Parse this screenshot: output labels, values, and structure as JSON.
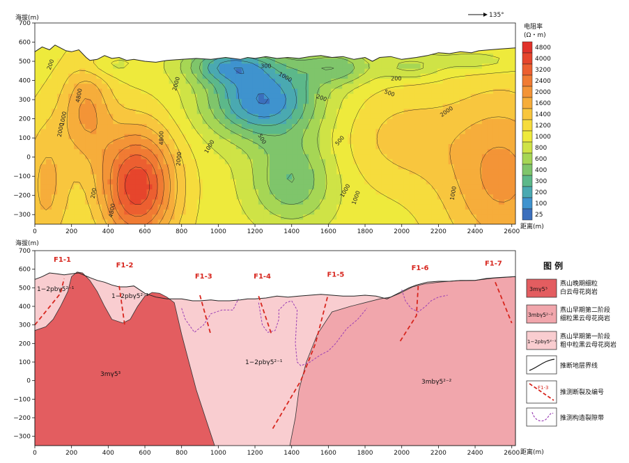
{
  "chart_data": [
    {
      "type": "heatmap",
      "title": "",
      "ylabel": "海拔(m)",
      "xlabel": "距离(m)",
      "direction_label": "135°",
      "xlim": [
        0,
        2620
      ],
      "ylim": [
        -350,
        700
      ],
      "x_ticks": [
        "0",
        "200",
        "400",
        "600",
        "800",
        "1000",
        "1200",
        "1400",
        "1600",
        "1800",
        "2000",
        "2200",
        "2400",
        "2600"
      ],
      "y_ticks": [
        "700",
        "600",
        "500",
        "400",
        "300",
        "200",
        "100",
        "0",
        "−100",
        "−200",
        "−300"
      ],
      "colorbar": {
        "title": "电阻率",
        "unit": "(Ω・m)",
        "levels": [
          "4800",
          "4000",
          "3200",
          "2400",
          "2000",
          "1600",
          "1400",
          "1200",
          "1000",
          "800",
          "600",
          "400",
          "300",
          "200",
          "100",
          "25"
        ],
        "colors": [
          "#e1322a",
          "#e6452c",
          "#ec5f30",
          "#f07b33",
          "#f39437",
          "#f6ad3b",
          "#f8c63e",
          "#f6dc3d",
          "#eeea3c",
          "#cfe346",
          "#a6d655",
          "#7fc56b",
          "#5cb88a",
          "#4aa9b1",
          "#3f93ce",
          "#3b6fbd"
        ]
      },
      "contour_labels": [
        "200",
        "1000",
        "2000",
        "4800",
        "200",
        "4800",
        "2000",
        "2000",
        "1000",
        "500",
        "500",
        "200",
        "300",
        "1000",
        "1000",
        "500",
        "200",
        "2000",
        "1000",
        "1000",
        "4800"
      ],
      "surface": [
        [
          0,
          550
        ],
        [
          40,
          575
        ],
        [
          80,
          560
        ],
        [
          110,
          585
        ],
        [
          150,
          565
        ],
        [
          170,
          555
        ],
        [
          200,
          550
        ],
        [
          240,
          560
        ],
        [
          280,
          520
        ],
        [
          300,
          505
        ],
        [
          340,
          510
        ],
        [
          380,
          530
        ],
        [
          420,
          515
        ],
        [
          460,
          520
        ],
        [
          500,
          505
        ],
        [
          540,
          510
        ],
        [
          600,
          500
        ],
        [
          660,
          495
        ],
        [
          720,
          505
        ],
        [
          800,
          510
        ],
        [
          880,
          515
        ],
        [
          960,
          510
        ],
        [
          1040,
          520
        ],
        [
          1120,
          510
        ],
        [
          1160,
          520
        ],
        [
          1200,
          515
        ],
        [
          1260,
          525
        ],
        [
          1320,
          515
        ],
        [
          1380,
          520
        ],
        [
          1440,
          515
        ],
        [
          1500,
          525
        ],
        [
          1560,
          530
        ],
        [
          1620,
          520
        ],
        [
          1680,
          525
        ],
        [
          1740,
          510
        ],
        [
          1800,
          520
        ],
        [
          1840,
          500
        ],
        [
          1880,
          520
        ],
        [
          1940,
          525
        ],
        [
          2000,
          510
        ],
        [
          2080,
          520
        ],
        [
          2140,
          530
        ],
        [
          2200,
          545
        ],
        [
          2260,
          540
        ],
        [
          2320,
          550
        ],
        [
          2380,
          545
        ],
        [
          2420,
          555
        ],
        [
          2480,
          560
        ],
        [
          2540,
          565
        ],
        [
          2620,
          570
        ]
      ]
    },
    {
      "type": "diagram",
      "title": "",
      "ylabel": "海拔(m)",
      "xlabel": "距离(m)",
      "xlim": [
        0,
        2620
      ],
      "ylim": [
        -350,
        700
      ],
      "x_ticks": [
        "0",
        "200",
        "400",
        "600",
        "800",
        "1000",
        "1200",
        "1400",
        "1600",
        "1800",
        "2000",
        "2200",
        "2400",
        "2600"
      ],
      "y_ticks": [
        "700",
        "600",
        "500",
        "400",
        "300",
        "200",
        "100",
        "0",
        "−100",
        "−200",
        "−300"
      ],
      "faults": [
        {
          "label": "F1-1",
          "path": [
            [
              0,
              300
            ],
            [
              140,
              470
            ],
            [
              160,
              550
            ]
          ]
        },
        {
          "label": "F1-2",
          "path": [
            [
              460,
              510
            ],
            [
              490,
              300
            ]
          ]
        },
        {
          "label": "F1-3",
          "path": [
            [
              900,
              460
            ],
            [
              960,
              245
            ]
          ]
        },
        {
          "label": "F1-4",
          "path": [
            [
              1220,
              455
            ],
            [
              1290,
              250
            ]
          ]
        },
        {
          "label": "F1-5",
          "path": [
            [
              1595,
              450
            ],
            [
              1530,
              200
            ],
            [
              1450,
              0
            ],
            [
              1290,
              -270
            ]
          ]
        },
        {
          "label": "F1-6",
          "path": [
            [
              2090,
              510
            ],
            [
              2080,
              350
            ],
            [
              1990,
              210
            ]
          ]
        },
        {
          "label": "F1-7",
          "path": [
            [
              2510,
              530
            ],
            [
              2600,
              310
            ]
          ]
        }
      ],
      "fracture_zones": [
        {
          "path": [
            [
              800,
              390
            ],
            [
              820,
              330
            ],
            [
              870,
              260
            ],
            [
              920,
              300
            ],
            [
              960,
              360
            ],
            [
              1020,
              380
            ],
            [
              1080,
              380
            ],
            [
              1110,
              440
            ]
          ]
        },
        {
          "path": [
            [
              1220,
              420
            ],
            [
              1240,
              300
            ],
            [
              1270,
              260
            ],
            [
              1310,
              270
            ],
            [
              1330,
              330
            ],
            [
              1330,
              380
            ],
            [
              1370,
              420
            ],
            [
              1400,
              430
            ],
            [
              1430,
              380
            ],
            [
              1420,
              200
            ],
            [
              1430,
              100
            ],
            [
              1450,
              80
            ],
            [
              1500,
              100
            ],
            [
              1560,
              140
            ],
            [
              1600,
              160
            ],
            [
              1640,
              200
            ],
            [
              1700,
              280
            ],
            [
              1760,
              330
            ],
            [
              1810,
              390
            ]
          ]
        },
        {
          "path": [
            [
              2000,
              490
            ],
            [
              2020,
              430
            ],
            [
              2050,
              390
            ],
            [
              2090,
              370
            ],
            [
              2130,
              400
            ],
            [
              2160,
              430
            ],
            [
              2200,
              450
            ],
            [
              2250,
              460
            ]
          ]
        }
      ],
      "unit_labels": [
        "1−2pbγ5²⁻¹",
        "1−2pbγ5²⁻¹",
        "1−2pbγ5²⁻¹",
        "3mγ5³",
        "3mbγ5²⁻²"
      ],
      "legend_title": "图  例",
      "legend": [
        {
          "symbol": "3mγ5³",
          "color": "#e35d60",
          "text1": "燕山晚期细粒",
          "text2": "白云母花岗岩"
        },
        {
          "symbol": "3mbγ5²⁻²",
          "color": "#f1a6ac",
          "text1": "燕山早期第二阶段",
          "text2": "细粒黑云母花岗岩"
        },
        {
          "symbol": "1−2pbγ5²⁻¹",
          "color": "#f9cdd0",
          "text1": "燕山早期第一阶段",
          "text2": "粗中粒黑云母花岗岩"
        },
        {
          "symbol": "",
          "text1": "推断地层界线",
          "text2": ""
        },
        {
          "symbol": "F1-3",
          "text1": "推测断裂及编号",
          "text2": ""
        },
        {
          "symbol": "",
          "text1": "推测构造裂隙带",
          "text2": ""
        }
      ]
    }
  ]
}
